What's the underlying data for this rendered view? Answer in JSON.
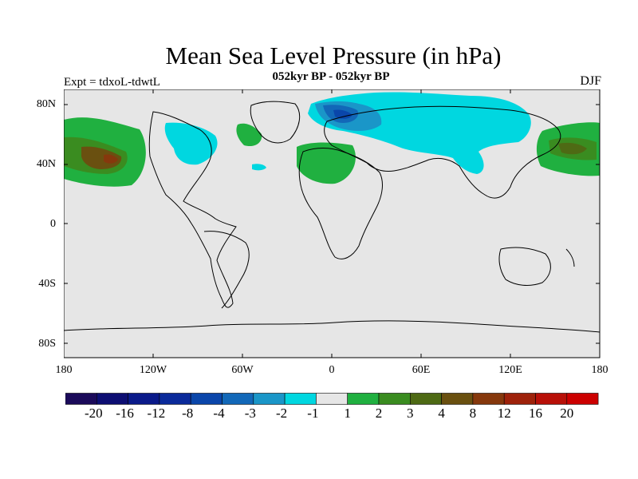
{
  "title": "Mean Sea Level Pressure (in hPa)",
  "subtitle": "052kyr BP - 052kyr BP",
  "experiment": "Expt = tdxoL-tdwtL",
  "season": "DJF",
  "map": {
    "ocean_fill": "#e6e6e6",
    "lat_labels": [
      "80N",
      "40N",
      "0",
      "40S",
      "80S"
    ],
    "lon_labels": [
      "180",
      "120W",
      "60W",
      "0",
      "60E",
      "120E",
      "180"
    ]
  },
  "colorbar": {
    "labels": [
      "-20",
      "-16",
      "-12",
      "-8",
      "-4",
      "-3",
      "-2",
      "-1",
      "1",
      "2",
      "3",
      "4",
      "8",
      "12",
      "16",
      "20"
    ],
    "colors": [
      "#1b0a5a",
      "#0d0e73",
      "#0a1a8a",
      "#0a2a9a",
      "#0a46aa",
      "#1268b8",
      "#1a96c8",
      "#00d7e0",
      "#e6e6e6",
      "#20b040",
      "#3a8c20",
      "#4e6a14",
      "#6a5010",
      "#86380c",
      "#9e220a",
      "#b81008",
      "#cc0000"
    ]
  }
}
